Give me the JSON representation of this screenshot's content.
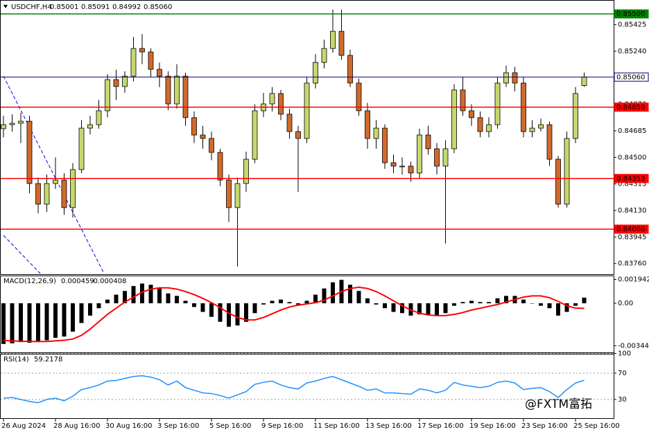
{
  "watermark": "@FXTM富拓",
  "chart_data": [
    {
      "type": "candlestick",
      "title": "USDCHF,H4",
      "categories": [
        "26 Aug 2024",
        null,
        null,
        null,
        null,
        null,
        "28 Aug 16:00",
        null,
        null,
        null,
        null,
        null,
        "30 Aug 16:00",
        null,
        null,
        null,
        null,
        null,
        "3 Sep 16:00",
        null,
        null,
        null,
        null,
        null,
        "5 Sep 16:00",
        null,
        null,
        null,
        null,
        null,
        "9 Sep 16:00",
        null,
        null,
        null,
        null,
        null,
        "11 Sep 16:00",
        null,
        null,
        null,
        null,
        null,
        "13 Sep 16:00",
        null,
        null,
        null,
        null,
        null,
        "17 Sep 16:00",
        null,
        null,
        null,
        null,
        null,
        "19 Sep 16:00",
        null,
        null,
        null,
        null,
        null,
        "23 Sep 16:00",
        null,
        null,
        null,
        null,
        null,
        "25 Sep 16:00",
        null
      ],
      "open": [
        0.847,
        0.84728,
        0.84738,
        0.84752,
        0.84318,
        0.84174,
        0.84318,
        0.84342,
        0.8415,
        0.84415,
        0.84704,
        0.84728,
        0.84825,
        0.85042,
        0.84994,
        0.85066,
        0.85259,
        0.85235,
        0.85114,
        0.85066,
        0.84873,
        0.85066,
        0.84777,
        0.84656,
        0.84632,
        0.84535,
        0.84342,
        0.8415,
        0.84318,
        0.84487,
        0.84825,
        0.84873,
        0.84945,
        0.84801,
        0.8468,
        0.84632,
        0.85018,
        0.85162,
        0.85259,
        0.85379,
        0.85211,
        0.85018,
        0.84825,
        0.84632,
        0.84704,
        0.84463,
        0.84439,
        0.84439,
        0.84391,
        0.84656,
        0.8456,
        0.84439,
        0.8456,
        0.8497,
        0.84825,
        0.84777,
        0.8468,
        0.84728,
        0.85018,
        0.8509,
        0.85018,
        0.8468,
        0.84704,
        0.84728,
        0.84487,
        0.84174,
        0.84632,
        0.85001
      ],
      "high": [
        0.8479,
        0.848,
        0.8481,
        0.8479,
        0.8436,
        0.8438,
        0.845,
        0.8439,
        0.8446,
        0.8476,
        0.8479,
        0.849,
        0.8508,
        0.8511,
        0.851,
        0.8534,
        0.8536,
        0.8526,
        0.8516,
        0.851,
        0.8515,
        0.8509,
        0.8482,
        0.8472,
        0.8468,
        0.8456,
        0.8438,
        0.8436,
        0.8454,
        0.8487,
        0.8495,
        0.8499,
        0.8497,
        0.8484,
        0.8472,
        0.8506,
        0.8522,
        0.8532,
        0.8553,
        0.8553,
        0.8525,
        0.8505,
        0.8488,
        0.8476,
        0.8473,
        0.8452,
        0.845,
        0.8447,
        0.847,
        0.8472,
        0.846,
        0.8462,
        0.8501,
        0.8506,
        0.8487,
        0.8482,
        0.8478,
        0.8506,
        0.8514,
        0.8513,
        0.8506,
        0.8476,
        0.8477,
        0.8475,
        0.8451,
        0.8468,
        0.8499,
        0.85091
      ],
      "low": [
        0.8464,
        0.8468,
        0.846,
        0.8425,
        0.8411,
        0.8412,
        0.8428,
        0.841,
        0.8408,
        0.8439,
        0.8466,
        0.847,
        0.8478,
        0.849,
        0.8495,
        0.8503,
        0.8515,
        0.8506,
        0.8499,
        0.8483,
        0.8484,
        0.8472,
        0.846,
        0.8456,
        0.8448,
        0.843,
        0.8405,
        0.8374,
        0.8426,
        0.8446,
        0.8478,
        0.8482,
        0.8476,
        0.8463,
        0.8426,
        0.846,
        0.8498,
        0.8512,
        0.8523,
        0.8518,
        0.8499,
        0.8479,
        0.8456,
        0.8456,
        0.8442,
        0.8439,
        0.8438,
        0.8433,
        0.8435,
        0.8452,
        0.8438,
        0.839,
        0.8453,
        0.8479,
        0.8472,
        0.8464,
        0.8464,
        0.847,
        0.8499,
        0.8496,
        0.8464,
        0.8464,
        0.8468,
        0.8444,
        0.8415,
        0.8415,
        0.846,
        0.84992
      ],
      "close": [
        0.84728,
        0.84738,
        0.84752,
        0.84318,
        0.84174,
        0.84318,
        0.84342,
        0.8415,
        0.84415,
        0.84704,
        0.84728,
        0.84825,
        0.85042,
        0.84994,
        0.85066,
        0.85259,
        0.85235,
        0.85114,
        0.85066,
        0.84873,
        0.85066,
        0.84777,
        0.84656,
        0.84632,
        0.84535,
        0.84342,
        0.8415,
        0.84318,
        0.84487,
        0.84825,
        0.84873,
        0.84945,
        0.84801,
        0.8468,
        0.84632,
        0.85018,
        0.85162,
        0.85259,
        0.85379,
        0.85211,
        0.85018,
        0.84825,
        0.84632,
        0.84704,
        0.84463,
        0.84439,
        0.84439,
        0.84391,
        0.84656,
        0.8456,
        0.84439,
        0.8456,
        0.8497,
        0.84825,
        0.84777,
        0.8468,
        0.84728,
        0.85018,
        0.8509,
        0.85018,
        0.8468,
        0.84704,
        0.84728,
        0.84487,
        0.84174,
        0.84632,
        0.84945,
        0.8506
      ],
      "last_bar_labels": [
        "0.85001",
        "0.85091",
        "0.84992",
        "0.85060"
      ],
      "up_color": "#c5d86d",
      "down_color": "#d2692a",
      "ylim": [
        0.83691,
        0.85568
      ],
      "yticks": [
        0.85425,
        {
          "value": 0.8524,
          "label": "0.85240"
        },
        {
          "value": 0.8487,
          "label": "0.84870"
        },
        0.84685,
        {
          "value": 0.845,
          "label": "0.84500"
        },
        0.84315,
        {
          "value": 0.8413,
          "label": "0.84130"
        },
        0.83945,
        {
          "value": 0.8376,
          "label": "0.83760"
        }
      ],
      "price_line": {
        "value": 0.8506,
        "label": "0.85060",
        "color": "#000080"
      },
      "levels": [
        {
          "value": 0.855,
          "label": "0.85500",
          "color": "#008000"
        },
        {
          "value": 0.8485,
          "label": "0.84850",
          "color": "#ff0000"
        },
        {
          "value": 0.84353,
          "label": "0.84353",
          "color": "#ff0000"
        },
        {
          "value": 0.84,
          "label": "0.84000",
          "color": "#ff0000"
        }
      ]
    },
    {
      "type": "macd",
      "title": "MACD(12,26,9)",
      "series": [
        {
          "kind": "bar",
          "color": "#000000",
          "values": [
            -0.0033,
            -0.00325,
            -0.00315,
            -0.0032,
            -0.00315,
            -0.003,
            -0.0028,
            -0.0027,
            -0.0023,
            -0.0016,
            -0.001,
            -0.0004,
            0.0003,
            0.0007,
            0.001,
            0.0014,
            0.0016,
            0.0015,
            0.0012,
            0.0008,
            0.0006,
            0.0002,
            -0.0003,
            -0.0007,
            -0.0011,
            -0.0015,
            -0.0019,
            -0.0018,
            -0.0015,
            -0.0008,
            -0.0001,
            0.0002,
            0.0003,
            0.0001,
            -0.0001,
            0.0002,
            0.0007,
            0.0012,
            0.0017,
            0.0019,
            0.0015,
            0.001,
            0.0004,
            -0.0001,
            -0.0004,
            -0.0007,
            -0.0008,
            -0.001,
            -0.0009,
            -0.0009,
            -0.001,
            -0.0008,
            -0.0002,
            0.0001,
            0.0002,
            0.0001,
            0.0001,
            0.0004,
            0.0006,
            0.0006,
            0.0003,
            0,
            -0.0002,
            -0.0004,
            -0.001,
            -0.0007,
            -0.0002,
            0.000459
          ]
        },
        {
          "kind": "line",
          "color": "#ff0000",
          "values": [
            -0.003,
            -0.00305,
            -0.00308,
            -0.0031,
            -0.0031,
            -0.0031,
            -0.00305,
            -0.003,
            -0.0029,
            -0.0026,
            -0.0021,
            -0.0015,
            -0.0009,
            -0.0004,
            0.0001,
            0.0005,
            0.0009,
            0.00115,
            0.00125,
            0.00125,
            0.00115,
            0.00095,
            0.0007,
            0.0004,
            5e-05,
            -0.00035,
            -0.0008,
            -0.00115,
            -0.00135,
            -0.00135,
            -0.00115,
            -0.00085,
            -0.00055,
            -0.0003,
            -0.00015,
            -5e-05,
            5e-05,
            0.00025,
            0.0006,
            0.00095,
            0.0012,
            0.0013,
            0.0012,
            0.00095,
            0.0006,
            0.0002,
            -0.0002,
            -0.00055,
            -0.0008,
            -0.00095,
            -0.001,
            -0.001,
            -0.0009,
            -0.00075,
            -0.00055,
            -0.0004,
            -0.00025,
            -0.0001,
            0.0001,
            0.0003,
            0.0005,
            0.0006,
            0.0006,
            0.00045,
            0.00015,
            -0.0002,
            -0.0004,
            -0.000408
          ]
        }
      ],
      "ylim": [
        -0.00404,
        0.00225
      ],
      "yticks": [
        0.001942,
        {
          "value": 0,
          "label": "0.00"
        },
        -0.00344
      ]
    },
    {
      "type": "rsi",
      "title": "RSI(14)",
      "color": "#1e90ff",
      "values": [
        32,
        33,
        30,
        27,
        25,
        30,
        32,
        28,
        35,
        45,
        48,
        52,
        58,
        59,
        62,
        65,
        66,
        64,
        60,
        52,
        58,
        48,
        44,
        40,
        39,
        36,
        32,
        37,
        42,
        53,
        56,
        58,
        52,
        48,
        46,
        55,
        58,
        62,
        65,
        60,
        55,
        50,
        44,
        46,
        40,
        40,
        39,
        38,
        46,
        44,
        40,
        44,
        56,
        52,
        50,
        48,
        50,
        56,
        58,
        55,
        45,
        47,
        48,
        42,
        33,
        45,
        55,
        59.2178
      ],
      "ylim": [
        0,
        100
      ],
      "yticks": [
        100,
        70,
        30
      ],
      "grid": true
    }
  ]
}
